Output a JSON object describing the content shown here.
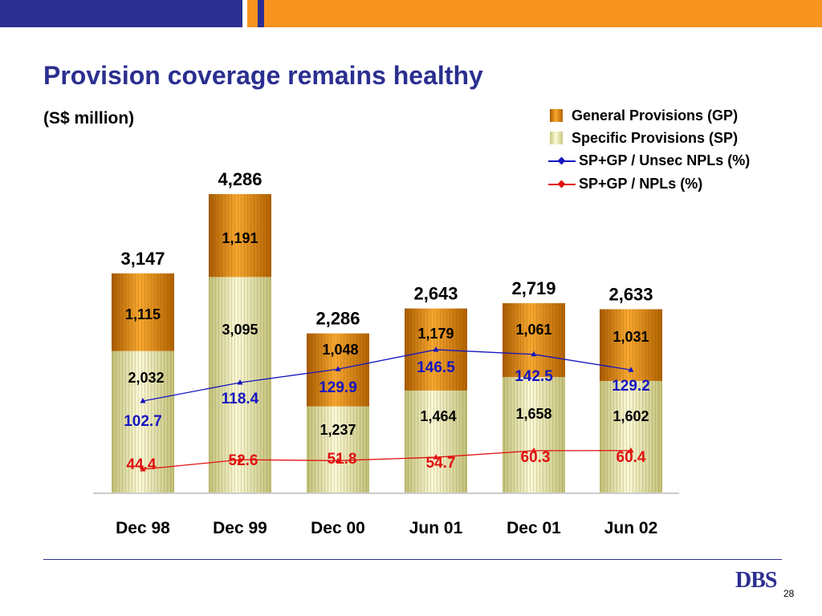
{
  "slide": {
    "title": "Provision coverage remains healthy",
    "subtitle": "(S$ million)",
    "page_number": "28",
    "logo": "DBS"
  },
  "colors": {
    "navy": "#2b2f8f",
    "orange": "#f7931e",
    "gp_dark": "#b86400",
    "gp_light": "#f8a830",
    "sp_dark": "#c8c880",
    "sp_light": "#fafad8",
    "unsec_line": "#1515c0",
    "npl_line": "#e01010"
  },
  "chart_data": {
    "type": "bar",
    "stacked": true,
    "categories": [
      "Dec 98",
      "Dec 99",
      "Dec 00",
      "Jun 01",
      "Dec 01",
      "Jun 02"
    ],
    "series": [
      {
        "name": "Specific Provisions (SP)",
        "values": [
          2032,
          3095,
          1237,
          1464,
          1658,
          1602
        ],
        "labels": [
          "2,032",
          "3,095",
          "1,237",
          "1,464",
          "1,658",
          "1,602"
        ]
      },
      {
        "name": "General Provisions (GP)",
        "values": [
          1115,
          1191,
          1048,
          1179,
          1061,
          1031
        ],
        "labels": [
          "1,115",
          "1,191",
          "1,048",
          "1,179",
          "1,061",
          "1,031"
        ]
      }
    ],
    "totals": [
      3147,
      4286,
      2286,
      2643,
      2719,
      2633
    ],
    "total_labels": [
      "3,147",
      "4,286",
      "2,286",
      "2,643",
      "2,719",
      "2,633"
    ],
    "lines": [
      {
        "name": "SP+GP / Unsec NPLs (%)",
        "values": [
          102.7,
          118.4,
          129.9,
          146.5,
          142.5,
          129.2
        ],
        "labels": [
          "102.7",
          "118.4",
          "129.9",
          "146.5",
          "142.5",
          "129.2"
        ]
      },
      {
        "name": "SP+GP / NPLs (%)",
        "values": [
          44.4,
          52.6,
          51.8,
          54.7,
          60.3,
          60.4
        ],
        "labels": [
          "44.4",
          "52.6",
          "51.8",
          "54.7",
          "60.3",
          "60.4"
        ]
      }
    ],
    "legend": [
      "General Provisions (GP)",
      "Specific Provisions (SP)",
      "SP+GP / Unsec NPLs (%)",
      "SP+GP / NPLs (%)"
    ],
    "legend_position": "top-right",
    "grid": false,
    "ylim": [
      0,
      4286
    ]
  }
}
